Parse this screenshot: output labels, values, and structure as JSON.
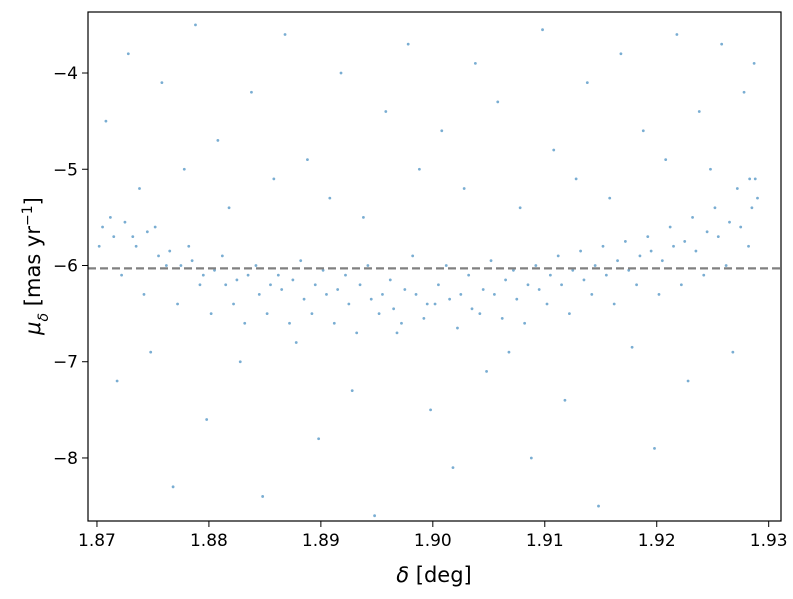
{
  "chart_data": {
    "type": "scatter",
    "xlabel": {
      "symbol": "δ",
      "unit": " [deg]"
    },
    "ylabel": {
      "symbol": "μ",
      "sub": "δ",
      "unit": " [mas yr",
      "sup": "−1",
      "close": "]"
    },
    "xlim": [
      1.8692,
      1.9311
    ],
    "ylim": [
      -8.655,
      -3.366
    ],
    "xticks": [
      1.87,
      1.88,
      1.89,
      {
        "value": 1.9,
        "label": "1.90"
      },
      1.91,
      1.92,
      1.93
    ],
    "yticks": [
      {
        "value": -4,
        "label": "−4"
      },
      {
        "value": -5,
        "label": "−5"
      },
      {
        "value": -6,
        "label": "−6"
      },
      {
        "value": -7,
        "label": "−7"
      },
      {
        "value": -8,
        "label": "−8"
      }
    ],
    "hline": -6.03,
    "hline_color": "#808080",
    "color": "#1f77b4",
    "x": [
      1.8705,
      1.8715,
      1.8725,
      1.8735,
      1.8745,
      1.8755,
      1.8765,
      1.8775,
      1.8785,
      1.8795,
      1.8805,
      1.8815,
      1.8825,
      1.8835,
      1.8845,
      1.8855,
      1.8865,
      1.8875,
      1.8885,
      1.8895,
      1.8905,
      1.8915,
      1.8925,
      1.8935,
      1.8945,
      1.8955,
      1.8965,
      1.8975,
      1.8985,
      1.8995,
      1.9005,
      1.9015,
      1.9025,
      1.9035,
      1.9045,
      1.9055,
      1.9065,
      1.9075,
      1.9085,
      1.9095,
      1.9105,
      1.9115,
      1.9125,
      1.9135,
      1.9145,
      1.9155,
      1.9165,
      1.9175,
      1.9185,
      1.9195,
      1.9205,
      1.9215,
      1.9225,
      1.9235,
      1.9245,
      1.9255,
      1.9265,
      1.9275,
      1.9285,
      1.929,
      1.8708,
      1.8718,
      1.8728,
      1.8738,
      1.8748,
      1.8758,
      1.8768,
      1.8778,
      1.8788,
      1.8798,
      1.8808,
      1.8818,
      1.8828,
      1.8838,
      1.8848,
      1.8858,
      1.8868,
      1.8878,
      1.8888,
      1.8898,
      1.8908,
      1.8918,
      1.8928,
      1.8938,
      1.8948,
      1.8958,
      1.8968,
      1.8978,
      1.8988,
      1.8998,
      1.9008,
      1.9018,
      1.9028,
      1.9038,
      1.9048,
      1.9058,
      1.9068,
      1.9078,
      1.9088,
      1.9098,
      1.9108,
      1.9118,
      1.9128,
      1.9138,
      1.9148,
      1.9158,
      1.9168,
      1.9178,
      1.9188,
      1.9198,
      1.9208,
      1.9218,
      1.9228,
      1.9238,
      1.9248,
      1.9258,
      1.9268,
      1.9278,
      1.9283,
      1.9287,
      1.8702,
      1.8712,
      1.8722,
      1.8732,
      1.8742,
      1.8752,
      1.8762,
      1.8772,
      1.8782,
      1.8792,
      1.8802,
      1.8812,
      1.8822,
      1.8832,
      1.8842,
      1.8852,
      1.8862,
      1.8872,
      1.8882,
      1.8892,
      1.8902,
      1.8912,
      1.8922,
      1.8932,
      1.8942,
      1.8952,
      1.8962,
      1.8972,
      1.8982,
      1.8992,
      1.9002,
      1.9012,
      1.9022,
      1.9032,
      1.9042,
      1.9052,
      1.9062,
      1.9072,
      1.9082,
      1.9092,
      1.9102,
      1.9112,
      1.9122,
      1.9132,
      1.9142,
      1.9152,
      1.9162,
      1.9172,
      1.9182,
      1.9192,
      1.9202,
      1.9212,
      1.9222,
      1.9232,
      1.9242,
      1.9252,
      1.9262,
      1.9272,
      1.9282,
      1.9288
    ],
    "values": [
      -5.6,
      -5.7,
      -5.55,
      -5.8,
      -5.65,
      -5.9,
      -5.85,
      -6.0,
      -5.95,
      -6.1,
      -6.05,
      -6.2,
      -6.15,
      -6.1,
      -6.3,
      -6.2,
      -6.25,
      -6.15,
      -6.35,
      -6.2,
      -6.3,
      -6.25,
      -6.4,
      -6.2,
      -6.35,
      -6.3,
      -6.45,
      -6.25,
      -6.3,
      -6.4,
      -6.2,
      -6.35,
      -6.3,
      -6.45,
      -6.25,
      -6.3,
      -6.15,
      -6.35,
      -6.2,
      -6.25,
      -6.1,
      -6.2,
      -6.05,
      -6.15,
      -6.0,
      -6.1,
      -5.95,
      -6.05,
      -5.9,
      -5.85,
      -5.95,
      -5.8,
      -5.75,
      -5.85,
      -5.65,
      -5.7,
      -5.55,
      -5.6,
      -5.4,
      -5.3,
      -4.5,
      -7.2,
      -3.8,
      -5.2,
      -6.9,
      -4.1,
      -8.3,
      -5.0,
      -3.5,
      -7.6,
      -4.7,
      -5.4,
      -7.0,
      -4.2,
      -8.4,
      -5.1,
      -3.6,
      -6.8,
      -4.9,
      -7.8,
      -5.3,
      -4.0,
      -7.3,
      -5.5,
      -8.6,
      -4.4,
      -6.7,
      -3.7,
      -5.0,
      -7.5,
      -4.6,
      -8.1,
      -5.2,
      -3.9,
      -7.1,
      -4.3,
      -6.9,
      -5.4,
      -8.0,
      -3.55,
      -4.8,
      -7.4,
      -5.1,
      -4.1,
      -8.5,
      -5.3,
      -3.8,
      -6.85,
      -4.6,
      -7.9,
      -4.9,
      -3.6,
      -7.2,
      -4.4,
      -5.0,
      -3.7,
      -6.9,
      -4.2,
      -5.1,
      -3.9,
      -5.8,
      -5.5,
      -6.1,
      -5.7,
      -6.3,
      -5.6,
      -6.0,
      -6.4,
      -5.8,
      -6.2,
      -6.5,
      -5.9,
      -6.4,
      -6.6,
      -6.0,
      -6.5,
      -6.1,
      -6.6,
      -5.95,
      -6.5,
      -6.05,
      -6.6,
      -6.1,
      -6.7,
      -6.0,
      -6.5,
      -6.15,
      -6.6,
      -5.9,
      -6.55,
      -6.4,
      -6.0,
      -6.65,
      -6.1,
      -6.5,
      -5.95,
      -6.55,
      -6.05,
      -6.6,
      -6.0,
      -6.4,
      -5.9,
      -6.5,
      -5.85,
      -6.3,
      -5.8,
      -6.4,
      -5.75,
      -6.2,
      -5.7,
      -6.3,
      -5.6,
      -6.2,
      -5.5,
      -6.1,
      -5.4,
      -6.0,
      -5.2,
      -5.8,
      -5.1
    ]
  }
}
